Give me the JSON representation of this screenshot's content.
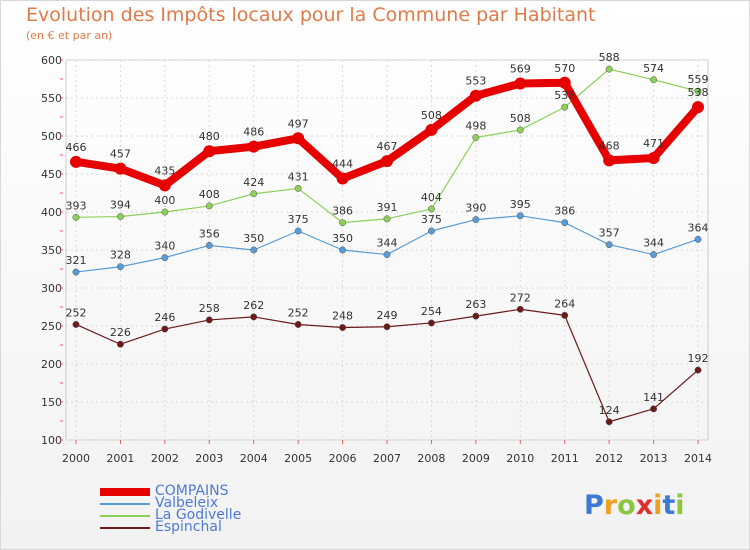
{
  "title": "Evolution des Impôts locaux pour la Commune par Habitant",
  "subtitle": "(en € et par an)",
  "logo": {
    "text": "Proxiti",
    "letters": [
      {
        "ch": "P",
        "color": "#3d7ad6"
      },
      {
        "ch": "r",
        "color": "#f0a020"
      },
      {
        "ch": "o",
        "color": "#8cc63f"
      },
      {
        "ch": "x",
        "color": "#e03030"
      },
      {
        "ch": "i",
        "color": "#f0a020"
      },
      {
        "ch": "t",
        "color": "#3d7ad6"
      },
      {
        "ch": "i",
        "color": "#8cc63f"
      }
    ]
  },
  "chart_data": {
    "type": "line",
    "title": "Evolution des Impôts locaux pour la Commune par Habitant",
    "subtitle": "(en € et par an)",
    "x": [
      "2000",
      "2001",
      "2002",
      "2003",
      "2004",
      "2005",
      "2006",
      "2007",
      "2008",
      "2009",
      "2010",
      "2011",
      "2012",
      "2013",
      "2014"
    ],
    "yticks": [
      100,
      150,
      200,
      250,
      300,
      350,
      400,
      450,
      500,
      550,
      600
    ],
    "ylim": [
      100,
      600
    ],
    "grid": true,
    "legend_position": "bottom-left",
    "series": [
      {
        "name": "COMPAINS",
        "color": "#e60000",
        "values": [
          466,
          457,
          435,
          480,
          486,
          497,
          444,
          467,
          508,
          553,
          569,
          570,
          468,
          471,
          538
        ]
      },
      {
        "name": "Valbeleix",
        "color": "#5b9bd5",
        "values": [
          321,
          328,
          340,
          356,
          350,
          375,
          350,
          344,
          375,
          390,
          395,
          386,
          357,
          344,
          364
        ]
      },
      {
        "name": "La Godivelle",
        "color": "#8cd05a",
        "values": [
          393,
          394,
          400,
          408,
          424,
          431,
          386,
          391,
          404,
          498,
          508,
          538,
          588,
          574,
          559
        ]
      },
      {
        "name": "Espinchal",
        "color": "#6b1a1a",
        "values": [
          252,
          226,
          246,
          258,
          262,
          252,
          248,
          249,
          254,
          263,
          272,
          264,
          124,
          141,
          192
        ]
      }
    ]
  }
}
